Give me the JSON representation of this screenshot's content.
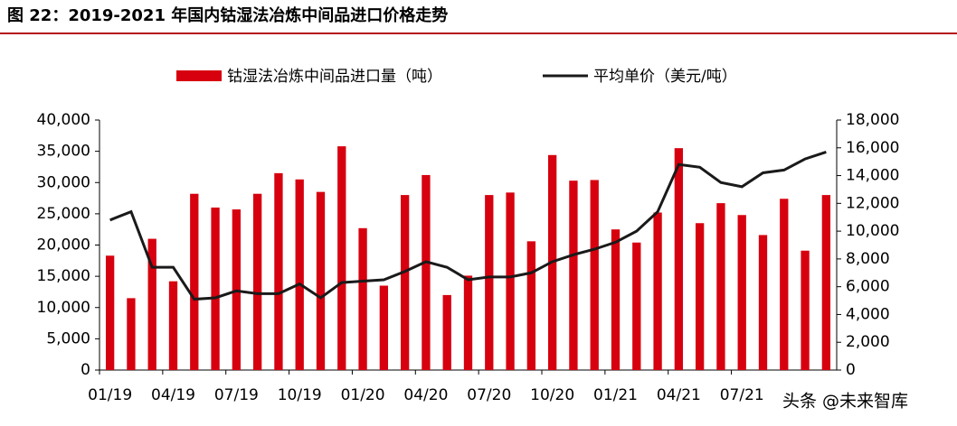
{
  "chart_data": {
    "type": "bar-line",
    "title": "图 22：2019-2021 年国内钴湿法冶炼中间品进口价格走势",
    "watermark": "头条 @未来智库",
    "categories": [
      "01/19",
      null,
      null,
      "04/19",
      null,
      null,
      "07/19",
      null,
      null,
      "10/19",
      null,
      null,
      "01/20",
      null,
      null,
      "04/20",
      null,
      null,
      "07/20",
      null,
      null,
      "10/20",
      null,
      null,
      "01/21",
      null,
      null,
      "04/21",
      null,
      null,
      "07/21",
      null,
      null,
      null,
      null
    ],
    "series": [
      {
        "name": "钴湿法冶炼中间品进口量（吨）",
        "type": "bar",
        "color": "#d7000f",
        "values": [
          18300,
          11500,
          21000,
          14200,
          28200,
          26000,
          25700,
          28200,
          31500,
          30500,
          28500,
          35800,
          22700,
          13500,
          28000,
          31200,
          12000,
          15100,
          28000,
          28400,
          20600,
          34400,
          30300,
          30400,
          22500,
          20400,
          25200,
          35500,
          23500,
          26700,
          24800,
          21600,
          27400,
          19100,
          28000
        ]
      },
      {
        "name": "平均单价（美元/吨）",
        "type": "line",
        "axis": "y2",
        "color": "#1a1a1a",
        "values": [
          10800,
          11400,
          7400,
          7400,
          5100,
          5200,
          5700,
          5500,
          5500,
          6200,
          5200,
          6300,
          6400,
          6500,
          7100,
          7800,
          7400,
          6500,
          6700,
          6700,
          7000,
          7800,
          8300,
          8700,
          9200,
          10000,
          11400,
          14800,
          14600,
          13500,
          13200,
          14200,
          14400,
          15200,
          15700
        ]
      }
    ],
    "ylim": [
      0,
      40000
    ],
    "yticks": [
      0,
      {
        "value": 5000,
        "label": "5,000"
      },
      {
        "value": 10000,
        "label": "10,000"
      },
      {
        "value": 15000,
        "label": "15,000"
      },
      {
        "value": 20000,
        "label": "20,000"
      },
      {
        "value": 25000,
        "label": "25,000"
      },
      {
        "value": 30000,
        "label": "30,000"
      },
      {
        "value": 35000,
        "label": "35,000"
      },
      {
        "value": 40000,
        "label": "40,000"
      }
    ],
    "y2lim": [
      0,
      18000
    ],
    "y2ticks": [
      0,
      {
        "value": 2000,
        "label": "2,000"
      },
      {
        "value": 4000,
        "label": "4,000"
      },
      {
        "value": 6000,
        "label": "6,000"
      },
      {
        "value": 8000,
        "label": "8,000"
      },
      {
        "value": 10000,
        "label": "10,000"
      },
      {
        "value": 12000,
        "label": "12,000"
      },
      {
        "value": 14000,
        "label": "14,000"
      },
      {
        "value": 16000,
        "label": "16,000"
      },
      {
        "value": 18000,
        "label": "18,000"
      }
    ],
    "legend": "top"
  }
}
